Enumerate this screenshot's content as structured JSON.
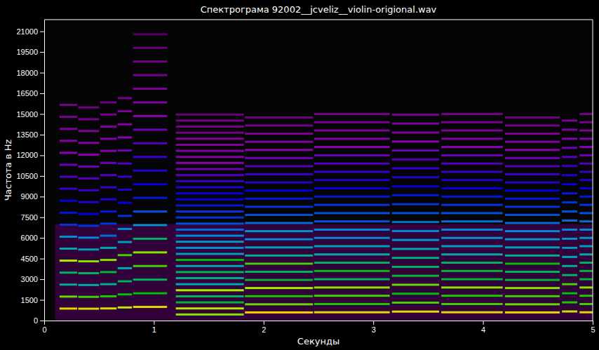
{
  "chart_data": {
    "type": "heatmap",
    "title": "Спектрограма 92002__jcveliz__violin-origional.wav",
    "x_label": "Секунды",
    "y_label": "Частота в Hz",
    "xlim": [
      0,
      5
    ],
    "ylim": [
      0,
      21850
    ],
    "xticks": [
      0,
      1,
      2,
      3,
      4,
      5
    ],
    "yticks": [
      0,
      1500,
      3000,
      4500,
      6000,
      7500,
      9000,
      10500,
      12000,
      13500,
      15000,
      16500,
      18000,
      19500,
      21000
    ],
    "levels_range": [
      -80,
      0
    ],
    "noise": {
      "start": 0.1,
      "end": 5,
      "low": 0,
      "high": 7000,
      "level": -72
    },
    "notes": [
      {
        "start": 0.14,
        "end": 0.3,
        "freqs": [
          870,
          1740,
          2610,
          3480,
          4350,
          5220,
          6090,
          6960,
          7830,
          8700,
          9570,
          10440,
          11310,
          12180,
          13050,
          13920,
          14790,
          15660
        ],
        "levels": [
          -10,
          -20,
          -32,
          -30,
          -16,
          -34,
          -38,
          -46,
          -48,
          -50,
          -54,
          -56,
          -58,
          -60,
          -62,
          -64,
          -66,
          -68
        ]
      },
      {
        "start": 0.31,
        "end": 0.5,
        "freqs": [
          860,
          1720,
          2580,
          3440,
          4300,
          5160,
          6020,
          6880,
          7740,
          8600,
          9460,
          10320,
          11180,
          12040,
          12900,
          13760,
          14620,
          15480
        ],
        "levels": [
          -12,
          -22,
          -34,
          -30,
          -18,
          -36,
          -40,
          -46,
          -50,
          -52,
          -54,
          -56,
          -58,
          -60,
          -62,
          -64,
          -66,
          -68
        ]
      },
      {
        "start": 0.51,
        "end": 0.66,
        "freqs": [
          880,
          1760,
          2640,
          3520,
          4400,
          5280,
          6160,
          7040,
          7920,
          8800,
          9680,
          10560,
          11440,
          12320,
          13200,
          14080,
          14960,
          15840
        ],
        "levels": [
          -12,
          -24,
          -32,
          -28,
          -18,
          -34,
          -42,
          -46,
          -48,
          -52,
          -54,
          -56,
          -58,
          -60,
          -62,
          -64,
          -66,
          -68
        ]
      },
      {
        "start": 0.67,
        "end": 0.8,
        "freqs": [
          950,
          1900,
          2850,
          3800,
          4750,
          5700,
          6650,
          7600,
          8550,
          9500,
          10450,
          11400,
          12350,
          13300,
          14250,
          15200,
          16150
        ],
        "levels": [
          -14,
          -26,
          -30,
          -34,
          -22,
          -36,
          -40,
          -46,
          -50,
          -52,
          -54,
          -56,
          -58,
          -60,
          -62,
          -64,
          -66
        ]
      },
      {
        "start": 0.81,
        "end": 1.12,
        "freqs": [
          990,
          1980,
          2970,
          3960,
          4950,
          5940,
          6930,
          7920,
          8910,
          9900,
          10890,
          11880,
          12870,
          13860,
          14850,
          15840,
          16830,
          17820,
          18810,
          19800,
          20790
        ],
        "levels": [
          -10,
          -26,
          -30,
          -22,
          -18,
          -30,
          -38,
          -44,
          -48,
          -50,
          -52,
          -54,
          -56,
          -58,
          -60,
          -62,
          -64,
          -66,
          -68,
          -70,
          -72
        ]
      },
      {
        "start": 1.2,
        "end": 1.82,
        "freqs": [
          440,
          880,
          1320,
          1760,
          2200,
          2640,
          3080,
          3520,
          3960,
          4400,
          4840,
          5280,
          5720,
          6160,
          6600,
          7040,
          7480,
          7920,
          8360,
          8800,
          9240,
          9680,
          10120,
          10560,
          11000,
          11440,
          11880,
          12320,
          12760,
          13200,
          13640,
          14080,
          14520,
          14960
        ],
        "levels": [
          -18,
          -14,
          -28,
          -30,
          -16,
          -34,
          -32,
          -30,
          -34,
          -26,
          -36,
          -38,
          -36,
          -40,
          -42,
          -44,
          -46,
          -46,
          -48,
          -50,
          -50,
          -52,
          -54,
          -56,
          -58,
          -60,
          -62,
          -62,
          -64,
          -64,
          -66,
          -66,
          -68,
          -70
        ]
      },
      {
        "start": 1.83,
        "end": 2.45,
        "freqs": [
          590,
          1180,
          1770,
          2360,
          2950,
          3540,
          4130,
          4720,
          5310,
          5900,
          6490,
          7080,
          7670,
          8260,
          8850,
          9440,
          10030,
          10620,
          11210,
          11800,
          12390,
          12980,
          13570,
          14160,
          14750
        ],
        "levels": [
          -8,
          -20,
          -24,
          -16,
          -28,
          -30,
          -22,
          -32,
          -36,
          -40,
          -38,
          -42,
          -44,
          -46,
          -48,
          -50,
          -52,
          -54,
          -56,
          -58,
          -60,
          -62,
          -64,
          -66,
          -68
        ]
      },
      {
        "start": 2.46,
        "end": 3.15,
        "freqs": [
          600,
          1200,
          1800,
          2400,
          3000,
          3600,
          4200,
          4800,
          5400,
          6000,
          6600,
          7200,
          7800,
          8400,
          9000,
          9600,
          10200,
          10800,
          11400,
          12000,
          12600,
          13200,
          13800,
          14400,
          15000
        ],
        "levels": [
          -10,
          -24,
          -22,
          -18,
          -30,
          -26,
          -30,
          -34,
          -36,
          -40,
          -40,
          -44,
          -44,
          -46,
          -48,
          -50,
          -52,
          -54,
          -56,
          -58,
          -60,
          -62,
          -64,
          -66,
          -68
        ]
      },
      {
        "start": 3.17,
        "end": 3.6,
        "freqs": [
          650,
          1300,
          1950,
          2600,
          3250,
          3900,
          4550,
          5200,
          5850,
          6500,
          7150,
          7800,
          8450,
          9100,
          9750,
          10400,
          11050,
          11700,
          12350,
          13000,
          13650,
          14300,
          14950
        ],
        "levels": [
          -10,
          -22,
          -26,
          -20,
          -28,
          -30,
          -32,
          -34,
          -38,
          -40,
          -42,
          -44,
          -46,
          -48,
          -50,
          -52,
          -54,
          -56,
          -58,
          -60,
          -62,
          -64,
          -66
        ]
      },
      {
        "start": 3.62,
        "end": 4.18,
        "freqs": [
          600,
          1200,
          1800,
          2400,
          3000,
          3600,
          4200,
          4800,
          5400,
          6000,
          6600,
          7200,
          7800,
          8400,
          9000,
          9600,
          10200,
          10800,
          11400,
          12000,
          12600,
          13200,
          13800,
          14400,
          15000
        ],
        "levels": [
          -10,
          -22,
          -24,
          -18,
          -28,
          -28,
          -30,
          -34,
          -36,
          -38,
          -40,
          -42,
          -44,
          -46,
          -48,
          -50,
          -52,
          -54,
          -56,
          -58,
          -60,
          -62,
          -64,
          -66,
          -68
        ]
      },
      {
        "start": 4.2,
        "end": 4.7,
        "freqs": [
          590,
          1180,
          1770,
          2360,
          2950,
          3540,
          4130,
          4720,
          5310,
          5900,
          6490,
          7080,
          7670,
          8260,
          8850,
          9440,
          10030,
          10620,
          11210,
          11800,
          12390,
          12980,
          13570,
          14160,
          14750
        ],
        "levels": [
          -10,
          -20,
          -22,
          -18,
          -28,
          -30,
          -26,
          -32,
          -36,
          -38,
          -40,
          -42,
          -44,
          -46,
          -48,
          -50,
          -52,
          -54,
          -56,
          -58,
          -60,
          -62,
          -64,
          -66,
          -68
        ]
      },
      {
        "start": 4.72,
        "end": 4.86,
        "freqs": [
          660,
          1320,
          1980,
          2640,
          3300,
          3960,
          4620,
          5280,
          5940,
          6600,
          7260,
          7920,
          8580,
          9240,
          9900,
          10560,
          11220,
          11880,
          12540,
          13200,
          13860,
          14520
        ],
        "levels": [
          -12,
          -24,
          -26,
          -22,
          -30,
          -32,
          -34,
          -36,
          -38,
          -40,
          -42,
          -44,
          -46,
          -48,
          -50,
          -52,
          -54,
          -56,
          -58,
          -60,
          -62,
          -64
        ]
      },
      {
        "start": 4.88,
        "end": 5.0,
        "freqs": [
          600,
          1200,
          1800,
          2400,
          3000,
          3600,
          4200,
          4800,
          5400,
          6000,
          6600,
          7200,
          7800,
          8400,
          9000,
          9600,
          10200,
          10800,
          11400,
          12000,
          12600,
          13200,
          13800,
          14400,
          15000
        ],
        "levels": [
          -10,
          -22,
          -24,
          -18,
          -28,
          -28,
          -30,
          -34,
          -36,
          -38,
          -40,
          -42,
          -44,
          -46,
          -48,
          -50,
          -52,
          -54,
          -56,
          -58,
          -60,
          -62,
          -64,
          -66,
          -68
        ]
      }
    ]
  }
}
